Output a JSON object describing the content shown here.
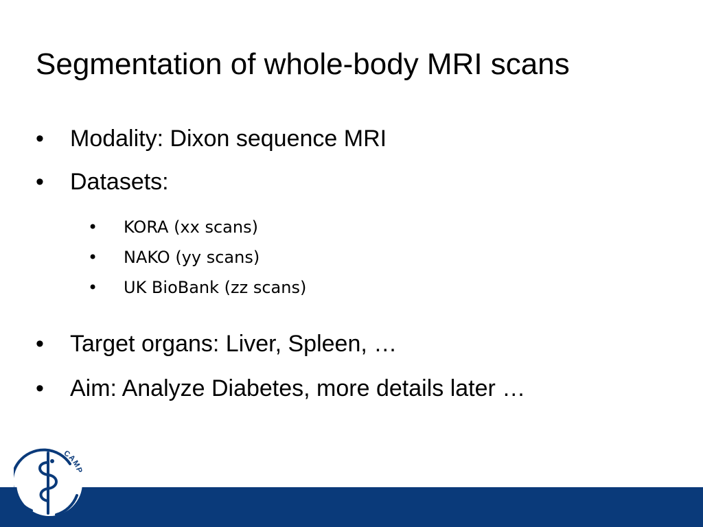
{
  "slide": {
    "title": "Segmentation of whole-body MRI scans",
    "bullets": [
      {
        "marker": "•",
        "text": "Modality: Dixon sequence MRI"
      },
      {
        "marker": "•",
        "text": "Datasets:"
      }
    ],
    "sub_bullets": [
      {
        "marker": "•",
        "text": "KORA (xx scans)"
      },
      {
        "marker": "•",
        "text": "NAKO (yy scans)"
      },
      {
        "marker": "•",
        "text": "UK BioBank (zz scans)"
      }
    ],
    "bullets_after": [
      {
        "marker": "•",
        "text": "Target organs: Liver, Spleen, …"
      },
      {
        "marker": "•",
        "text": "Aim: Analyze Diabetes, more details later …"
      }
    ]
  },
  "footer": {
    "bar_color": "#0a3a7a",
    "logo_text": "CAMP",
    "logo_icon": "caduceus-icon"
  }
}
